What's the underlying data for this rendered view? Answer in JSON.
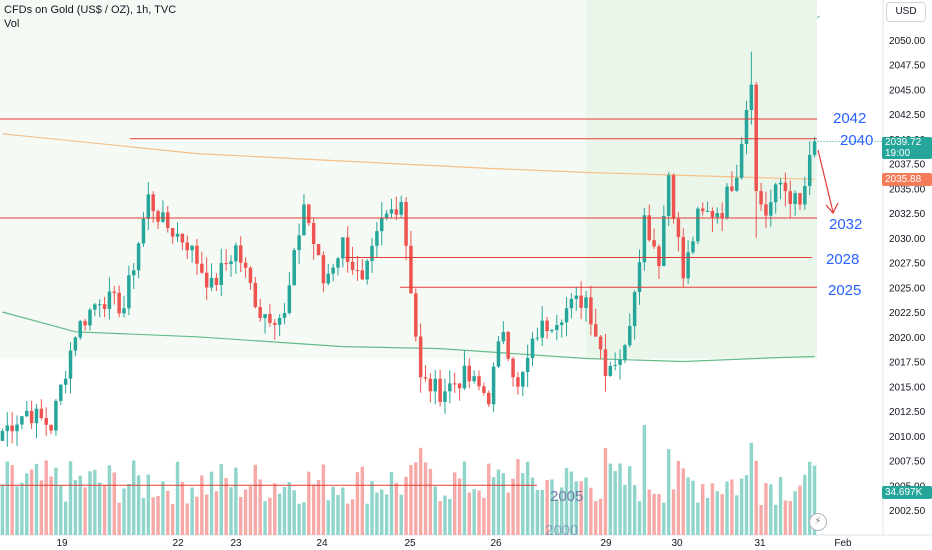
{
  "header": {
    "title": "CFDs on Gold (US$ / OZ), 1h, TVC",
    "indicator": "Vol"
  },
  "currency_button": "USD",
  "price_tags": {
    "last": "2039.72",
    "countdown": "19:00",
    "ma": "2035.88",
    "volume": "34.697K"
  },
  "annotations": {
    "l2042": "2042",
    "l2040": "2040",
    "l2032": "2032",
    "l2028": "2028",
    "l2025": "2025",
    "l2005": "2005",
    "l2000": "2000"
  },
  "colors": {
    "up": "#26a69a",
    "down": "#ef5350",
    "vol_up": "#8fd5cb",
    "vol_down": "#f7a9a7",
    "level_line": "#e53935",
    "annotation": "#2962ff",
    "ma_orange": "#f5c08a",
    "ma_green": "#66bb8a",
    "last_tag": "#26a69a",
    "ma_tag": "#f57c59",
    "vol_tag": "#26a69a"
  },
  "chart_data": {
    "type": "candlestick",
    "symbol": "CFDs on Gold (US$ / OZ)",
    "timeframe": "1h",
    "y_ticks": [
      2002.5,
      2005.0,
      2007.5,
      2010.0,
      2012.5,
      2015.0,
      2017.5,
      2020.0,
      2022.5,
      2025.0,
      2027.5,
      2030.0,
      2032.5,
      2035.0,
      2037.5,
      2040.0,
      2042.5,
      2045.0,
      2047.5,
      2050.0
    ],
    "x_ticks": [
      "19",
      "22",
      "23",
      "24",
      "25",
      "26",
      "29",
      "30",
      "31",
      "Feb"
    ],
    "ylim": [
      2000.9,
      2052.4
    ],
    "last_price": 2039.72,
    "ma_value": 2035.88,
    "volume_last": "34.697K",
    "horizontal_levels": [
      2042,
      2040,
      2032,
      2028,
      2025,
      2005
    ],
    "anchor_points": [
      {
        "x": 0,
        "close": 2010.5
      },
      {
        "x": 5,
        "close": 2012.5
      },
      {
        "x": 10,
        "close": 2011.0
      },
      {
        "x": 15,
        "close": 2020.5
      },
      {
        "x": 20,
        "close": 2024.0
      },
      {
        "x": 25,
        "close": 2023.0
      },
      {
        "x": 30,
        "close": 2034.0
      },
      {
        "x": 33,
        "close": 2031.5
      },
      {
        "x": 38,
        "close": 2029.5
      },
      {
        "x": 43,
        "close": 2025.0
      },
      {
        "x": 48,
        "close": 2029.0
      },
      {
        "x": 53,
        "close": 2022.5
      },
      {
        "x": 58,
        "close": 2022.0
      },
      {
        "x": 62,
        "close": 2033.5
      },
      {
        "x": 66,
        "close": 2025.5
      },
      {
        "x": 70,
        "close": 2029.5
      },
      {
        "x": 74,
        "close": 2025.0
      },
      {
        "x": 78,
        "close": 2031.5
      },
      {
        "x": 82,
        "close": 2034.0
      },
      {
        "x": 84,
        "close": 2025.0
      },
      {
        "x": 86,
        "close": 2015.5
      },
      {
        "x": 90,
        "close": 2014.5
      },
      {
        "x": 95,
        "close": 2016.0
      },
      {
        "x": 100,
        "close": 2014.0
      },
      {
        "x": 103,
        "close": 2021.0
      },
      {
        "x": 106,
        "close": 2014.5
      },
      {
        "x": 110,
        "close": 2020.5
      },
      {
        "x": 115,
        "close": 2022.5
      },
      {
        "x": 120,
        "close": 2024.0
      },
      {
        "x": 124,
        "close": 2017.0
      },
      {
        "x": 128,
        "close": 2018.5
      },
      {
        "x": 132,
        "close": 2032.0
      },
      {
        "x": 135,
        "close": 2028.0
      },
      {
        "x": 137,
        "close": 2036.5
      },
      {
        "x": 140,
        "close": 2026.0
      },
      {
        "x": 143,
        "close": 2032.0
      },
      {
        "x": 148,
        "close": 2033.0
      },
      {
        "x": 151,
        "close": 2037.0
      },
      {
        "x": 154,
        "close": 2046.5
      },
      {
        "x": 155,
        "close": 2034.5
      },
      {
        "x": 157,
        "close": 2032.5
      },
      {
        "x": 160,
        "close": 2035.5
      },
      {
        "x": 164,
        "close": 2033.0
      },
      {
        "x": 167,
        "close": 2039.7
      }
    ],
    "orange_ma": [
      [
        0,
        2040.5
      ],
      [
        20,
        2039.5
      ],
      [
        40,
        2038.5
      ],
      [
        60,
        2038.0
      ],
      [
        80,
        2037.5
      ],
      [
        100,
        2037.0
      ],
      [
        120,
        2036.6
      ],
      [
        140,
        2036.3
      ],
      [
        160,
        2036.0
      ],
      [
        167,
        2035.9
      ]
    ],
    "green_ma": [
      [
        0,
        2022.5
      ],
      [
        15,
        2020.5
      ],
      [
        40,
        2020.0
      ],
      [
        70,
        2019.0
      ],
      [
        90,
        2018.8
      ],
      [
        120,
        2017.8
      ],
      [
        140,
        2017.5
      ],
      [
        160,
        2017.9
      ],
      [
        167,
        2018.0
      ]
    ]
  }
}
